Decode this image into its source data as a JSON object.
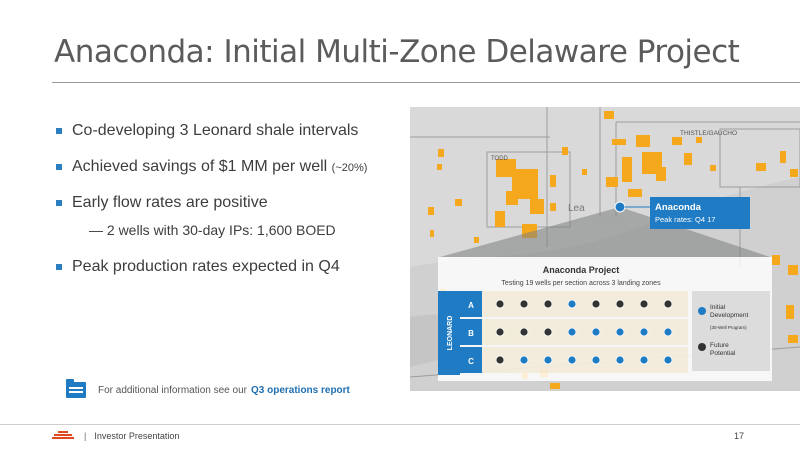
{
  "title": "Anaconda: Initial Multi-Zone Delaware Project",
  "bullets": [
    {
      "text": "Co-developing 3 Leonard shale intervals",
      "small": ""
    },
    {
      "text": "Achieved savings of $1 MM per well ",
      "small": "(~20%)"
    },
    {
      "text": "Early flow rates are positive",
      "small": ""
    },
    {
      "text": "Peak production rates expected in Q4",
      "small": ""
    }
  ],
  "sub_bullet": "— 2 wells with 30-day IPs: 1,600 BOED",
  "note": {
    "prefix": "For additional information see our",
    "link": "Q3 operations report",
    "icon": "folder-icon"
  },
  "footer": {
    "label": "Investor Presentation",
    "page": "17",
    "separator": "|"
  },
  "map": {
    "labels": {
      "todd": "TODD",
      "thistle": "THISTLE/GAUCHO",
      "lea": "Lea"
    },
    "callout": {
      "name": "Anaconda",
      "sub": "Peak rates: Q4 17"
    },
    "project": {
      "title": "Anaconda Project",
      "subtitle": "Testing 19 wells per section across 3 landing zones",
      "zone_label": "LEONARD",
      "rows": [
        {
          "label": "A",
          "wells": [
            "future",
            "future",
            "future",
            "initial",
            "future",
            "future",
            "future",
            "future"
          ]
        },
        {
          "label": "B",
          "wells": [
            "future",
            "future",
            "future",
            "initial",
            "initial",
            "initial",
            "initial",
            "initial"
          ]
        },
        {
          "label": "C",
          "wells": [
            "future",
            "initial",
            "initial",
            "initial",
            "initial",
            "initial",
            "initial",
            "initial"
          ]
        }
      ]
    },
    "legend": {
      "initial": "Initial Development",
      "initial_note": "(30-Well Program)",
      "future": "Future Potential"
    }
  },
  "colors": {
    "accent": "#2b7fc1",
    "acreage": "#f5a81c",
    "callout": "#1f7cc4",
    "logo": "#e04a1e"
  }
}
